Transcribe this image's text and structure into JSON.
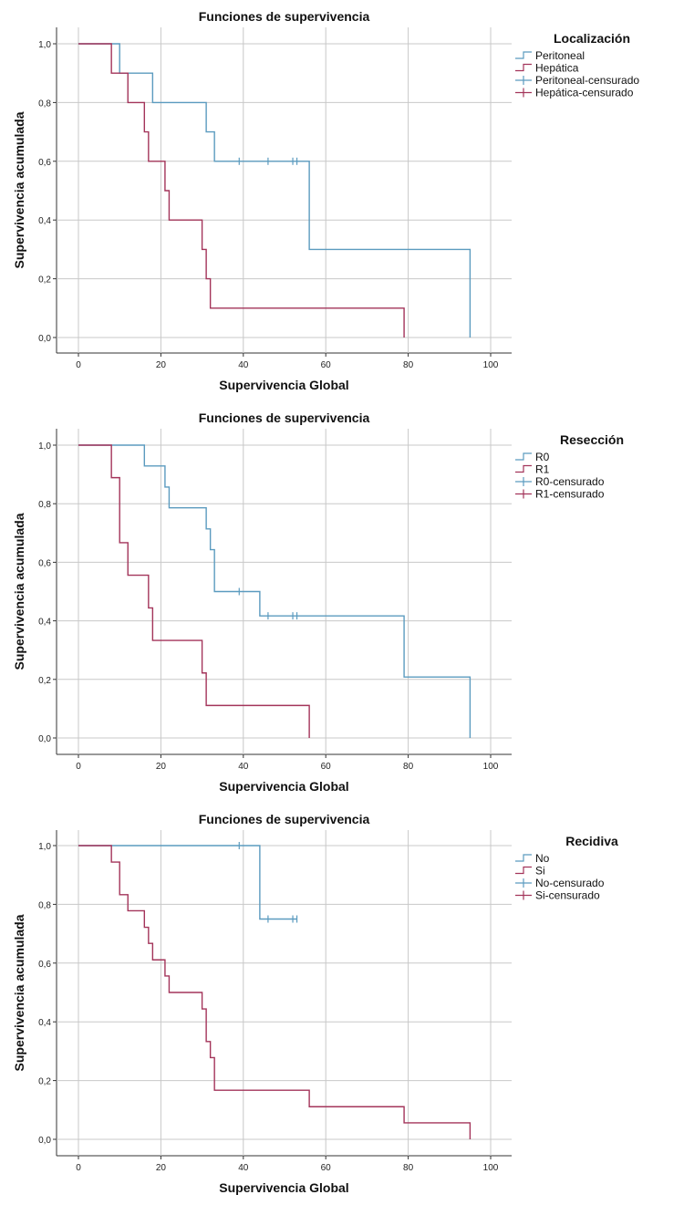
{
  "chart_data": [
    {
      "type": "line",
      "title": "Funciones de supervivencia",
      "xlabel": "Supervivencia Global",
      "ylabel": "Supervivencia acumulada",
      "xlim": [
        0,
        100
      ],
      "ylim": [
        0,
        1
      ],
      "xticks": [
        "0",
        "20",
        "40",
        "60",
        "80",
        "100"
      ],
      "yticks": [
        "0,0",
        "0,2",
        "0,4",
        "0,6",
        "0,8",
        "1,0"
      ],
      "grid": true,
      "legend": {
        "title": "Localización",
        "position": "right",
        "entries": [
          "Peritoneal",
          "Hepática",
          "Peritoneal-censurado",
          "Hepática-censurado"
        ]
      },
      "series": [
        {
          "name": "Peritoneal",
          "color": "#5b9bbf",
          "steps": [
            [
              0,
              1.0
            ],
            [
              10,
              0.9
            ],
            [
              18,
              0.8
            ],
            [
              31,
              0.7
            ],
            [
              33,
              0.6
            ],
            [
              56,
              0.3
            ],
            [
              95,
              0.0
            ]
          ],
          "end": 95,
          "censored": [
            39,
            46,
            52,
            53
          ]
        },
        {
          "name": "Hepática",
          "color": "#a3345a",
          "steps": [
            [
              0,
              1.0
            ],
            [
              8,
              0.9
            ],
            [
              12,
              0.8
            ],
            [
              16,
              0.7
            ],
            [
              17,
              0.6
            ],
            [
              21,
              0.5
            ],
            [
              22,
              0.4
            ],
            [
              30,
              0.3
            ],
            [
              31,
              0.2
            ],
            [
              32,
              0.1
            ],
            [
              79,
              0.0
            ]
          ],
          "end": 79,
          "censored": []
        }
      ]
    },
    {
      "type": "line",
      "title": "Funciones de supervivencia",
      "xlabel": "Supervivencia Global",
      "ylabel": "Supervivencia acumulada",
      "xlim": [
        0,
        100
      ],
      "ylim": [
        0,
        1
      ],
      "xticks": [
        "0",
        "20",
        "40",
        "60",
        "80",
        "100"
      ],
      "yticks": [
        "0,0",
        "0,2",
        "0,4",
        "0,6",
        "0,8",
        "1,0"
      ],
      "grid": true,
      "legend": {
        "title": "Resección",
        "position": "right",
        "entries": [
          "R0",
          "R1",
          "R0-censurado",
          "R1-censurado"
        ]
      },
      "series": [
        {
          "name": "R0",
          "color": "#5b9bbf",
          "steps": [
            [
              0,
              1.0
            ],
            [
              16,
              0.929
            ],
            [
              21,
              0.857
            ],
            [
              22,
              0.786
            ],
            [
              31,
              0.714
            ],
            [
              32,
              0.643
            ],
            [
              33,
              0.5
            ],
            [
              44,
              0.417
            ],
            [
              79,
              0.208
            ],
            [
              95,
              0.0
            ]
          ],
          "end": 95,
          "censored": [
            39,
            46,
            52,
            53
          ]
        },
        {
          "name": "R1",
          "color": "#a3345a",
          "steps": [
            [
              0,
              1.0
            ],
            [
              8,
              0.889
            ],
            [
              10,
              0.667
            ],
            [
              12,
              0.556
            ],
            [
              17,
              0.444
            ],
            [
              18,
              0.333
            ],
            [
              30,
              0.222
            ],
            [
              31,
              0.111
            ],
            [
              56,
              0.0
            ]
          ],
          "end": 56,
          "censored": []
        }
      ]
    },
    {
      "type": "line",
      "title": "Funciones de supervivencia",
      "xlabel": "Supervivencia Global",
      "ylabel": "Supervivencia acumulada",
      "xlim": [
        0,
        100
      ],
      "ylim": [
        0,
        1
      ],
      "xticks": [
        "0",
        "20",
        "40",
        "60",
        "80",
        "100"
      ],
      "yticks": [
        "0,0",
        "0,2",
        "0,4",
        "0,6",
        "0,8",
        "1,0"
      ],
      "grid": true,
      "legend": {
        "title": "Recidiva",
        "position": "right",
        "entries": [
          "No",
          "Si",
          "No-censurado",
          "Si-censurado"
        ]
      },
      "series": [
        {
          "name": "No",
          "color": "#5b9bbf",
          "steps": [
            [
              0,
              1.0
            ],
            [
              44,
              0.75
            ]
          ],
          "end": 53,
          "censored": [
            39,
            46,
            52,
            53
          ]
        },
        {
          "name": "Si",
          "color": "#a3345a",
          "steps": [
            [
              0,
              1.0
            ],
            [
              8,
              0.944
            ],
            [
              10,
              0.833
            ],
            [
              12,
              0.778
            ],
            [
              16,
              0.722
            ],
            [
              17,
              0.667
            ],
            [
              18,
              0.611
            ],
            [
              21,
              0.556
            ],
            [
              22,
              0.5
            ],
            [
              30,
              0.444
            ],
            [
              31,
              0.333
            ],
            [
              32,
              0.278
            ],
            [
              33,
              0.167
            ],
            [
              56,
              0.111
            ],
            [
              79,
              0.056
            ],
            [
              95,
              0.0
            ]
          ],
          "end": 95,
          "censored": []
        }
      ]
    }
  ]
}
